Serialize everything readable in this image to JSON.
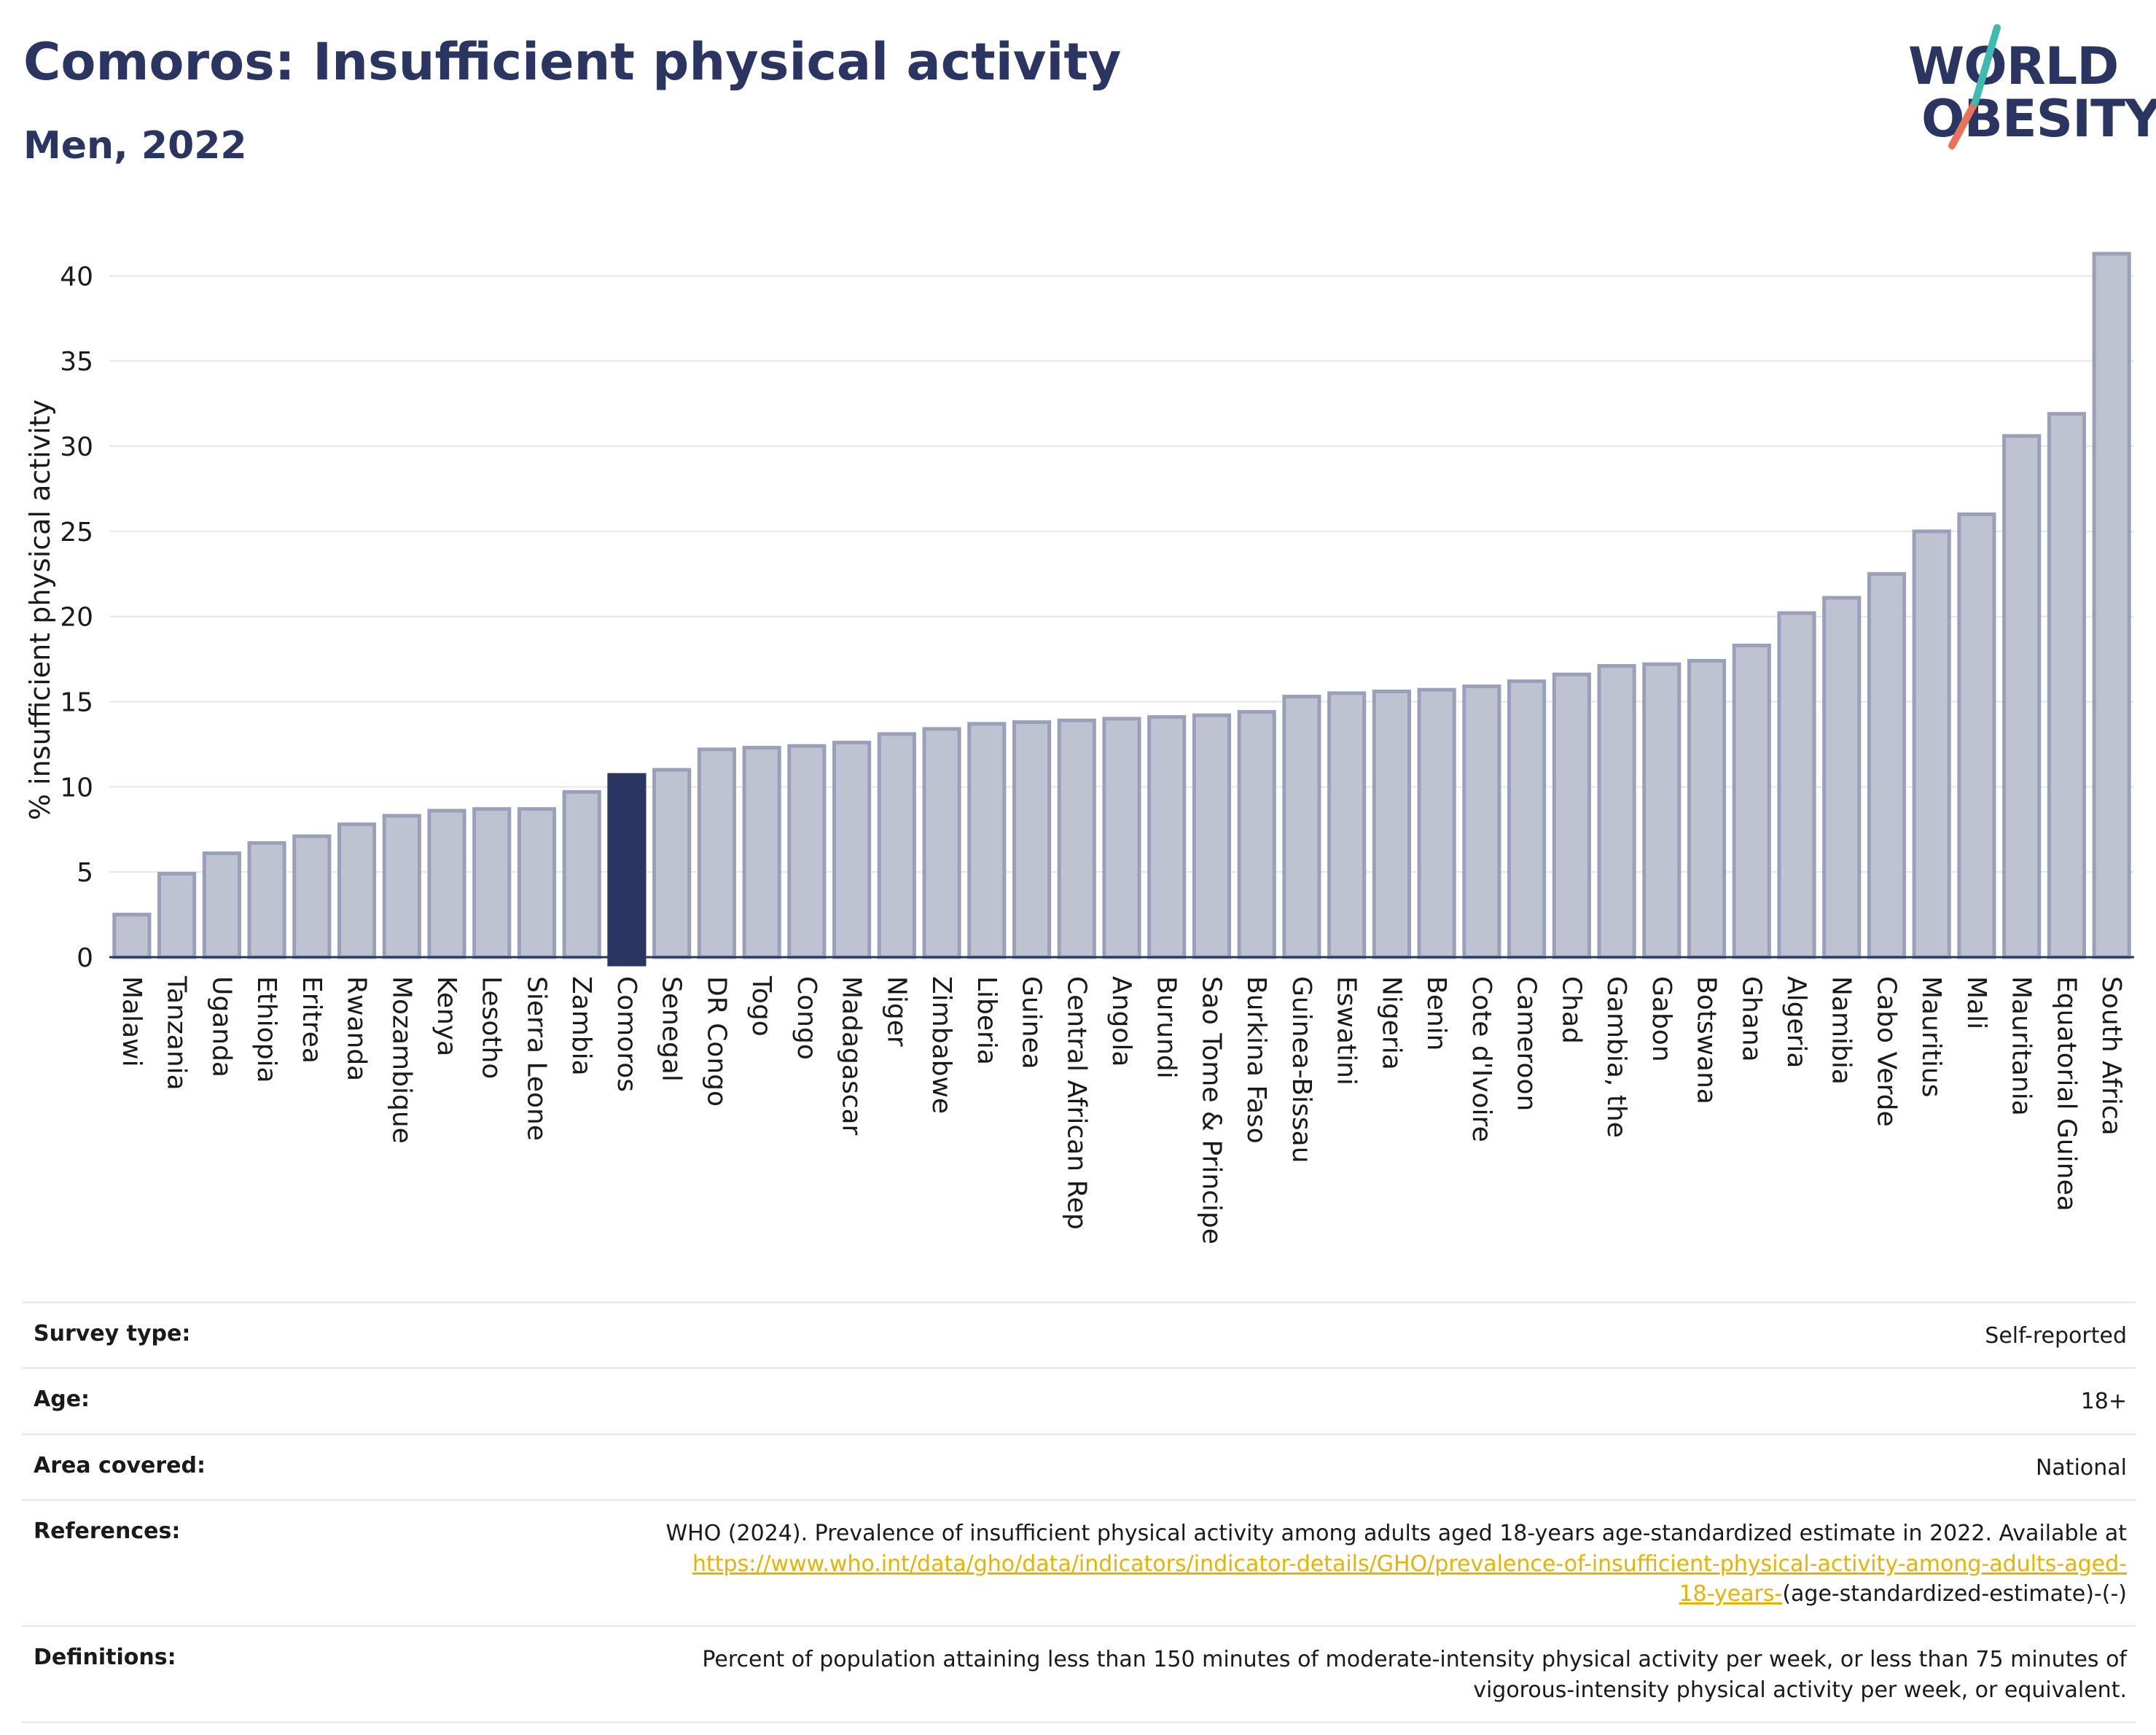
{
  "header": {
    "title": "Comoros: Insufficient physical activity",
    "subtitle": "Men, 2022"
  },
  "logo": {
    "line1": "WORLD",
    "line2": "OBESITY"
  },
  "colors": {
    "bar": "#bfc3d1",
    "bar_stroke": "#9aa0b9",
    "highlight": "#2b3561",
    "grid": "#e6e6e6",
    "axis": "#2b3561",
    "link": "#e8b300"
  },
  "chart_data": {
    "type": "bar",
    "ylabel": "% insufficient physical activity",
    "xlabel": "",
    "ylim": [
      0,
      42.5
    ],
    "yticks": [
      0,
      5,
      10,
      15,
      20,
      25,
      30,
      35,
      40
    ],
    "grid": true,
    "highlight": "Comoros",
    "categories": [
      "Malawi",
      "Tanzania",
      "Uganda",
      "Ethiopia",
      "Eritrea",
      "Rwanda",
      "Mozambique",
      "Kenya",
      "Lesotho",
      "Sierra Leone",
      "Zambia",
      "Comoros",
      "Senegal",
      "DR Congo",
      "Togo",
      "Congo",
      "Madagascar",
      "Niger",
      "Zimbabwe",
      "Liberia",
      "Guinea",
      "Central African Rep",
      "Angola",
      "Burundi",
      "Sao Tome & Principe",
      "Burkina Faso",
      "Guinea-Bissau",
      "Eswatini",
      "Nigeria",
      "Benin",
      "Cote d'Ivoire",
      "Cameroon",
      "Chad",
      "Gambia, the",
      "Gabon",
      "Botswana",
      "Ghana",
      "Algeria",
      "Namibia",
      "Cabo Verde",
      "Mauritius",
      "Mali",
      "Mauritania",
      "Equatorial Guinea",
      "South Africa"
    ],
    "values": [
      2.5,
      4.9,
      6.1,
      6.7,
      7.1,
      7.8,
      8.3,
      8.6,
      8.7,
      8.7,
      9.7,
      10.7,
      11.0,
      12.2,
      12.3,
      12.4,
      12.6,
      13.1,
      13.4,
      13.7,
      13.8,
      13.9,
      14.0,
      14.1,
      14.2,
      14.4,
      15.3,
      15.5,
      15.6,
      15.7,
      15.9,
      16.2,
      16.6,
      17.1,
      17.2,
      17.4,
      18.3,
      20.2,
      21.1,
      22.5,
      25.0,
      26.0,
      30.6,
      31.9,
      41.3
    ]
  },
  "meta": {
    "survey_type_label": "Survey type:",
    "survey_type_value": "Self-reported",
    "age_label": "Age:",
    "age_value": "18+",
    "area_label": "Area covered:",
    "area_value": "National",
    "references_label": "References:",
    "references_text": "WHO (2024). Prevalence of insufficient physical activity among adults aged 18-years age-standardized estimate in 2022. Available at",
    "references_link_1": "https://www.who.int/data/gho/data/indicators/indicator-details/GHO/prevalence-of-insufficient-physical-activity-among-adults-aged-",
    "references_link_2": "18-years-",
    "references_tail": "(age-standardized-estimate)-(-)",
    "definitions_label": "Definitions:",
    "definitions_line_1": "Percent of population attaining less than 150 minutes of moderate-intensity physical activity per week, or less than 75 minutes of",
    "definitions_line_2": "vigorous-intensity physical activity per week, or equivalent."
  }
}
